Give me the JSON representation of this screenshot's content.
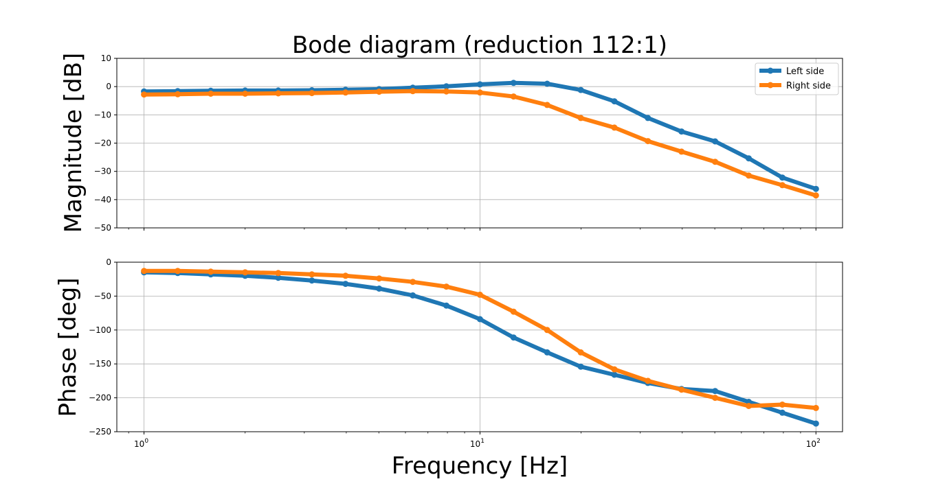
{
  "chart_data": [
    {
      "type": "line",
      "title": "Bode diagram (reduction 112:1)",
      "xlabel": "",
      "ylabel": "Magnitude [dB]",
      "xscale": "log",
      "xlim": [
        0.83,
        120
      ],
      "ylim": [
        -50,
        10
      ],
      "yticks": [
        10,
        0,
        -10,
        -20,
        -30,
        -40,
        -50
      ],
      "ytick_labels": [
        "10",
        "0",
        "−10",
        "−20",
        "−30",
        "−40",
        "−50"
      ],
      "grid": true,
      "legend": "top-right",
      "x": [
        1,
        1.26,
        1.58,
        2,
        2.51,
        3.16,
        3.98,
        5.01,
        6.31,
        7.94,
        10,
        12.59,
        15.85,
        19.95,
        25.12,
        31.62,
        39.81,
        50.12,
        63.1,
        79.43,
        100
      ],
      "series": [
        {
          "name": "Left side",
          "color": "#1f77b4",
          "values": [
            -1.7,
            -1.6,
            -1.5,
            -1.4,
            -1.4,
            -1.3,
            -1.1,
            -0.9,
            -0.4,
            0.1,
            0.8,
            1.3,
            1.0,
            -1.2,
            -5.2,
            -11.1,
            -15.9,
            -19.4,
            -25.4,
            -32.2,
            -36.2
          ]
        },
        {
          "name": "Right side",
          "color": "#ff7f0e",
          "values": [
            -2.8,
            -2.7,
            -2.5,
            -2.5,
            -2.4,
            -2.3,
            -2.1,
            -1.8,
            -1.6,
            -1.7,
            -2.1,
            -3.5,
            -6.5,
            -11.1,
            -14.5,
            -19.3,
            -23.0,
            -26.6,
            -31.5,
            -34.9,
            -38.5
          ]
        }
      ]
    },
    {
      "type": "line",
      "xlabel": "Frequency [Hz]",
      "ylabel": "Phase [deg]",
      "xscale": "log",
      "xlim": [
        0.83,
        120
      ],
      "ylim": [
        -250,
        0
      ],
      "xticks": [
        1,
        10,
        100
      ],
      "xtick_labels": [
        {
          "base": "10",
          "exp": "0"
        },
        {
          "base": "10",
          "exp": "1"
        },
        {
          "base": "10",
          "exp": "2"
        }
      ],
      "yticks": [
        0,
        -50,
        -100,
        -150,
        -200,
        -250
      ],
      "ytick_labels": [
        "0",
        "−50",
        "−100",
        "−150",
        "−200",
        "−250"
      ],
      "grid": true,
      "x": [
        1,
        1.26,
        1.58,
        2,
        2.51,
        3.16,
        3.98,
        5.01,
        6.31,
        7.94,
        10,
        12.59,
        15.85,
        19.95,
        25.12,
        31.62,
        39.81,
        50.12,
        63.1,
        79.43,
        100
      ],
      "series": [
        {
          "name": "Left side",
          "color": "#1f77b4",
          "values": [
            -15,
            -16,
            -18,
            -20,
            -23,
            -27,
            -32,
            -39,
            -49,
            -64,
            -84,
            -111,
            -133,
            -154,
            -166,
            -178,
            -187,
            -190,
            -206,
            -222,
            -238
          ]
        },
        {
          "name": "Right side",
          "color": "#ff7f0e",
          "values": [
            -13,
            -13,
            -14,
            -15,
            -16,
            -18,
            -20,
            -24,
            -29,
            -36,
            -48,
            -73,
            -100,
            -133,
            -158,
            -175,
            -188,
            -200,
            -212,
            -210,
            -215
          ]
        }
      ]
    }
  ]
}
